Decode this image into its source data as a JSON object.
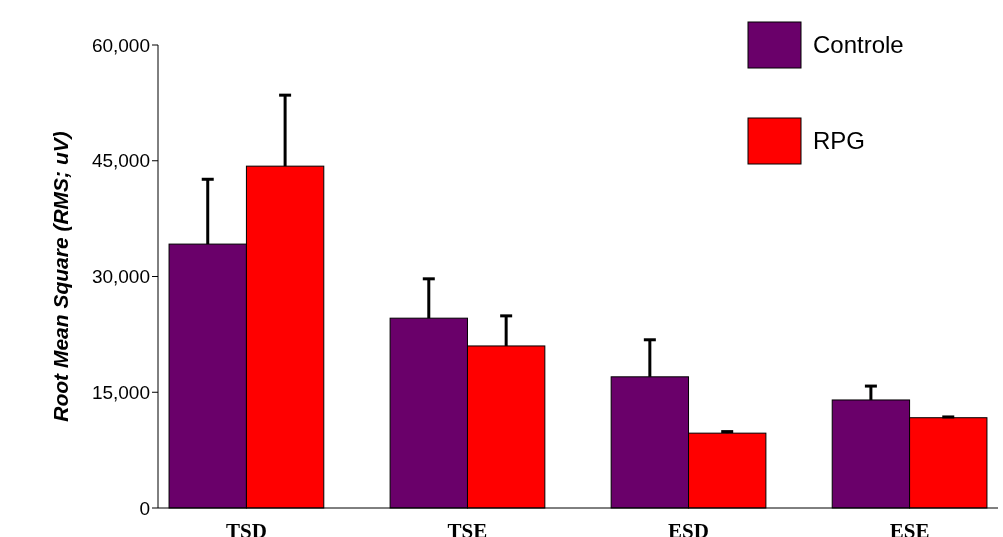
{
  "chart_data": {
    "type": "bar",
    "ylabel": "Root Mean Square (RMS; uV)",
    "categories": [
      "TSD",
      "TSE",
      "ESD",
      "ESE"
    ],
    "series": [
      {
        "name": "Controle",
        "color": "#6a006a",
        "values": [
          34200,
          24600,
          17000,
          14000
        ],
        "errors": [
          [
            34200,
            42600
          ],
          [
            24600,
            29700
          ],
          [
            17000,
            21800
          ],
          [
            14000,
            15800
          ]
        ]
      },
      {
        "name": "RPG",
        "color": "#ff0000",
        "values": [
          44300,
          21000,
          9700,
          11700
        ],
        "errors": [
          [
            44300,
            53500
          ],
          [
            21000,
            24900
          ],
          [
            9700,
            9900
          ],
          [
            11700,
            11800
          ]
        ]
      }
    ],
    "ylim": [
      0,
      60000
    ],
    "yticks": [
      0,
      {
        "value": 15000,
        "label": "15,000"
      },
      {
        "value": 30000,
        "label": "30,000"
      },
      {
        "value": 45000,
        "label": "45,000"
      },
      {
        "value": 60000,
        "label": "60,000"
      }
    ],
    "legend": "top right"
  }
}
